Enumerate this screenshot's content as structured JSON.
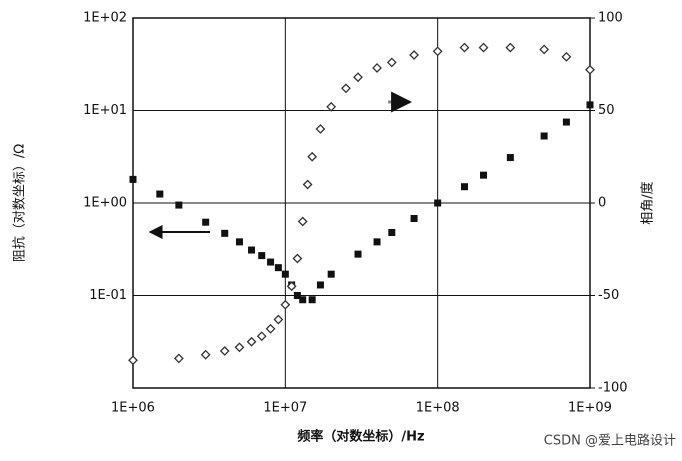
{
  "chart_data": {
    "type": "scatter",
    "x_label": "频率（对数坐标）/Hz",
    "y_label": "阻抗（对数坐标）/Ω",
    "y2_label": "相角/度",
    "watermark": "CSDN @爱上电路设计",
    "x_log": true,
    "y_log": true,
    "grid": true,
    "xlim": [
      1000000,
      1000000000
    ],
    "xticks": [
      {
        "value": 1000000,
        "label": "1E+06"
      },
      {
        "value": 10000000,
        "label": "1E+07"
      },
      {
        "value": 100000000,
        "label": "1E+08"
      },
      {
        "value": 1000000000,
        "label": "1E+09"
      }
    ],
    "ylim": [
      0.01,
      100
    ],
    "yticks": [
      {
        "value": 100,
        "label": "1E+02"
      },
      {
        "value": 10,
        "label": "1E+01"
      },
      {
        "value": 1,
        "label": "1E+00"
      },
      {
        "value": 0.1,
        "label": "1E-01"
      }
    ],
    "y2lim": [
      -100,
      100
    ],
    "y2ticks": [
      100,
      50,
      0,
      -50,
      -100
    ],
    "series": [
      {
        "marker": "square",
        "color": "#111111",
        "x": [
          1000000,
          1500000,
          2000000,
          3000000,
          4000000,
          5000000,
          6000000,
          7000000,
          8000000,
          9000000,
          10000000,
          11000000,
          12000000,
          13000000,
          15000000,
          17000000,
          20000000,
          30000000,
          40000000,
          50000000,
          70000000,
          100000000,
          150000000,
          200000000,
          300000000,
          500000000,
          700000000,
          1000000000
        ],
        "values": [
          1.8,
          1.25,
          0.95,
          0.62,
          0.47,
          0.38,
          0.31,
          0.27,
          0.23,
          0.2,
          0.17,
          0.13,
          0.1,
          0.09,
          0.09,
          0.13,
          0.17,
          0.28,
          0.38,
          0.48,
          0.68,
          1.0,
          1.5,
          2.0,
          3.1,
          5.3,
          7.5,
          11.5
        ]
      },
      {
        "marker": "diamond",
        "color": "#333333",
        "axis": "y2",
        "x": [
          1000000,
          2000000,
          3000000,
          4000000,
          5000000,
          6000000,
          7000000,
          8000000,
          9000000,
          10000000,
          11000000,
          12000000,
          13000000,
          14000000,
          15000000,
          17000000,
          20000000,
          25000000,
          30000000,
          40000000,
          50000000,
          70000000,
          100000000,
          150000000,
          200000000,
          300000000,
          500000000,
          700000000,
          1000000000
        ],
        "values": [
          -85,
          -84,
          -82,
          -80,
          -78,
          -75,
          -72,
          -68,
          -63,
          -55,
          -45,
          -30,
          -10,
          10,
          25,
          40,
          52,
          62,
          68,
          73,
          76,
          80,
          82,
          84,
          84,
          84,
          83,
          79,
          72
        ]
      }
    ]
  }
}
